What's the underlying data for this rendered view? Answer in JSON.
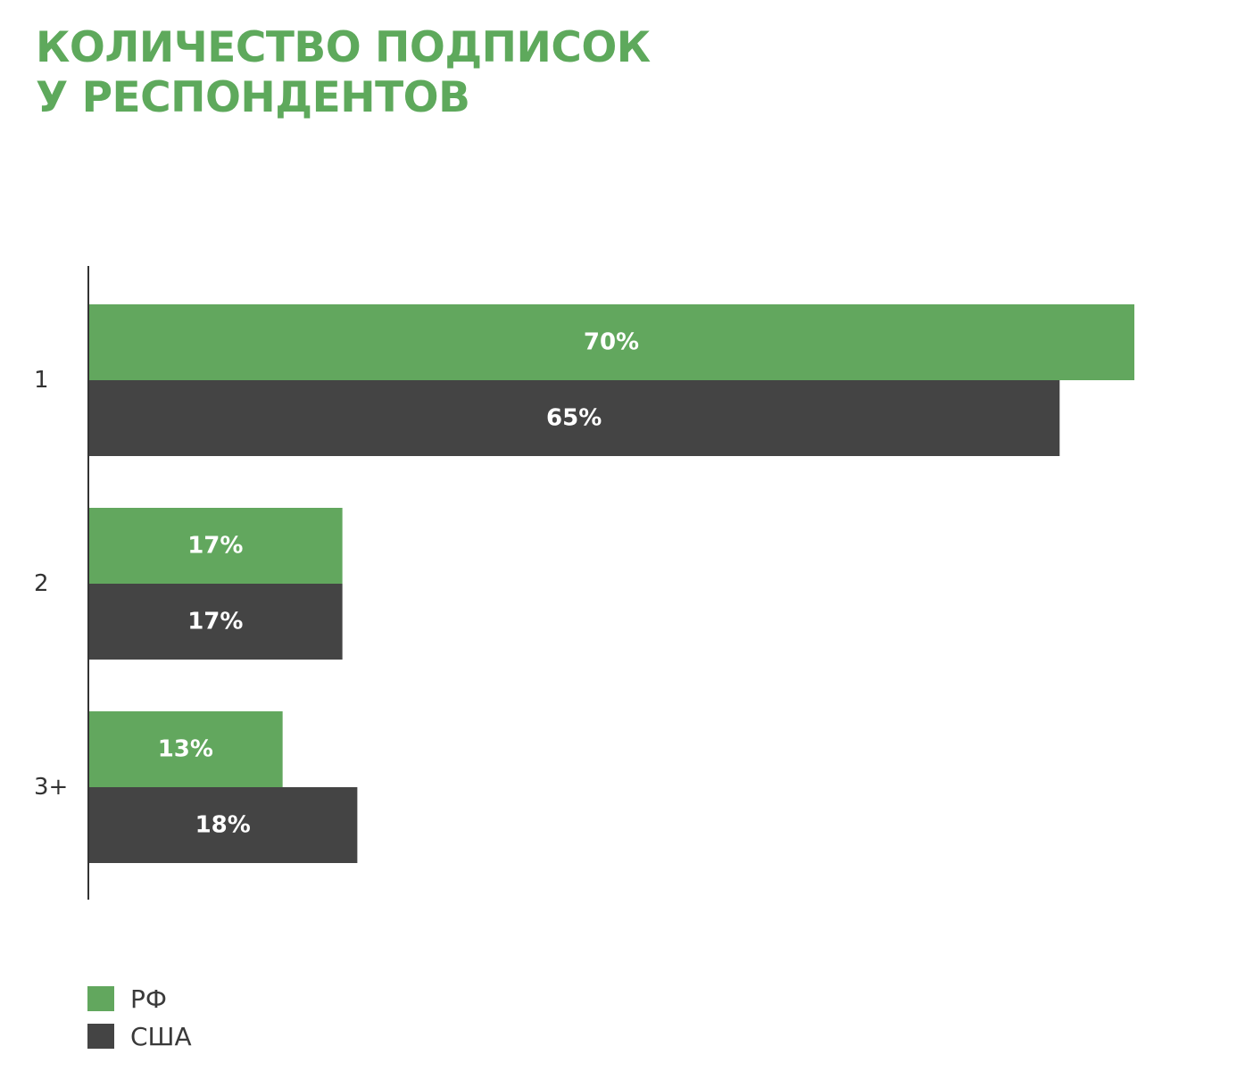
{
  "title": {
    "line1": "Количество подписок",
    "line2": "у респондентов"
  },
  "colors": {
    "title": "#5ea95c",
    "rf": "#62a75e",
    "usa": "#444444",
    "axis": "#333333"
  },
  "chart_data": {
    "type": "bar",
    "orientation": "horizontal",
    "title": "Количество подписок у респондентов",
    "categories": [
      "1",
      "2",
      "3+"
    ],
    "series": [
      {
        "name": "РФ",
        "values": [
          70,
          17,
          13
        ],
        "labels": [
          "70%",
          "17%",
          "13%"
        ]
      },
      {
        "name": "США",
        "values": [
          65,
          17,
          18
        ],
        "labels": [
          "65%",
          "17%",
          "18%"
        ]
      }
    ],
    "xlim": [
      0,
      70
    ],
    "grid": false,
    "legend": "bottom-left"
  },
  "legend": [
    {
      "label": "РФ"
    },
    {
      "label": "США"
    }
  ]
}
